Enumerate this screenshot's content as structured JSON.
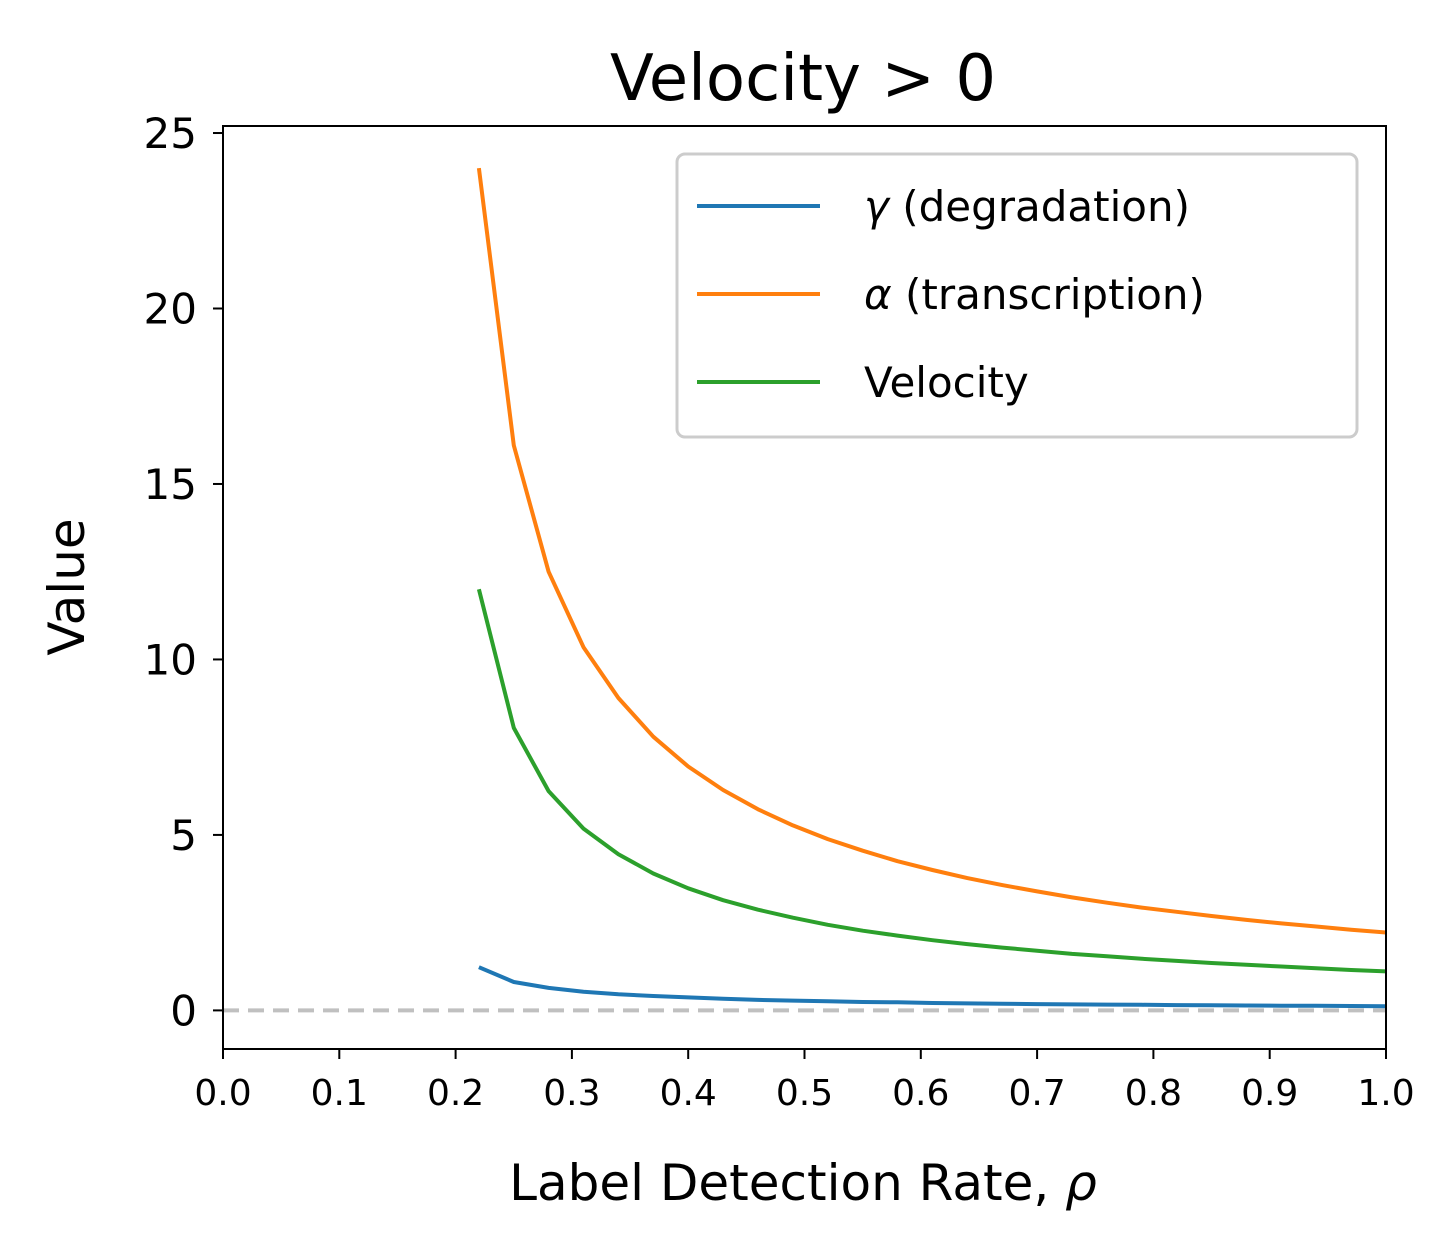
{
  "chart_data": {
    "type": "line",
    "title": "Velocity > 0",
    "xlabel": "Label Detection Rate, ",
    "xlabel_symbol": "ρ",
    "ylabel": "Value",
    "xlim": [
      0.0,
      1.0
    ],
    "ylim": [
      -1.1,
      25.2
    ],
    "x_ticks": [
      "0.0",
      "0.1",
      "0.2",
      "0.3",
      "0.4",
      "0.5",
      "0.6",
      "0.7",
      "0.8",
      "0.9",
      "1.0"
    ],
    "x_tick_values": [
      0.0,
      0.1,
      0.2,
      0.3,
      0.4,
      0.5,
      0.6,
      0.7,
      0.8,
      0.9,
      1.0
    ],
    "y_ticks": [
      "0",
      "5",
      "10",
      "15",
      "20",
      "25"
    ],
    "y_tick_values": [
      0,
      5,
      10,
      15,
      20,
      25
    ],
    "grid": false,
    "legend_position": "top-right",
    "x": [
      0.22,
      0.25,
      0.28,
      0.31,
      0.34,
      0.37,
      0.4,
      0.43,
      0.46,
      0.49,
      0.52,
      0.55,
      0.58,
      0.61,
      0.64,
      0.67,
      0.7,
      0.73,
      0.76,
      0.79,
      0.82,
      0.85,
      0.88,
      0.91,
      0.94,
      0.97,
      1.0
    ],
    "series": [
      {
        "name": "(degradation)",
        "symbol": "γ",
        "color": "#1f77b4",
        "values": [
          1.23,
          0.81,
          0.64,
          0.53,
          0.46,
          0.41,
          0.37,
          0.33,
          0.3,
          0.28,
          0.26,
          0.24,
          0.23,
          0.21,
          0.2,
          0.19,
          0.18,
          0.17,
          0.165,
          0.16,
          0.15,
          0.145,
          0.14,
          0.135,
          0.13,
          0.125,
          0.12
        ]
      },
      {
        "name": "(transcription)",
        "symbol": "α",
        "color": "#ff7f0e",
        "values": [
          24.0,
          16.1,
          12.5,
          10.35,
          8.9,
          7.8,
          6.95,
          6.28,
          5.73,
          5.27,
          4.88,
          4.55,
          4.25,
          4.0,
          3.77,
          3.57,
          3.39,
          3.22,
          3.07,
          2.93,
          2.81,
          2.69,
          2.58,
          2.48,
          2.39,
          2.3,
          2.22
        ]
      },
      {
        "name": "Velocity",
        "symbol": "",
        "color": "#2ca02c",
        "values": [
          12.0,
          8.05,
          6.25,
          5.18,
          4.45,
          3.9,
          3.48,
          3.14,
          2.87,
          2.64,
          2.44,
          2.27,
          2.13,
          2.0,
          1.89,
          1.79,
          1.7,
          1.61,
          1.54,
          1.47,
          1.41,
          1.35,
          1.3,
          1.25,
          1.2,
          1.15,
          1.11
        ]
      }
    ],
    "reference_line": {
      "y": 0,
      "color": "#c0c0c0",
      "style": "dashed"
    },
    "frame_color": "#000000",
    "legend_border_color": "#cccccc"
  }
}
